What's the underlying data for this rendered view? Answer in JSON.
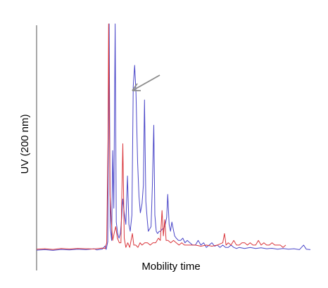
{
  "chart_data": {
    "type": "line",
    "title": "",
    "xlabel": "Mobility time",
    "ylabel": "UV (200 nm)",
    "xlim": [
      0,
      100
    ],
    "ylim": [
      0,
      100
    ],
    "grid": false,
    "legend": "none",
    "annotation": "arrow pointing to broad blue peak",
    "series": [
      {
        "color": "#4a46c8",
        "points": [
          [
            0,
            1.8
          ],
          [
            3,
            2.0
          ],
          [
            6,
            1.7
          ],
          [
            9,
            2.1
          ],
          [
            12,
            1.9
          ],
          [
            15,
            2.2
          ],
          [
            18,
            2.0
          ],
          [
            21,
            2.4
          ],
          [
            22,
            1.9
          ],
          [
            24,
            2.3
          ],
          [
            25,
            3.6
          ],
          [
            25.4,
            2.1
          ],
          [
            26,
            5.5
          ],
          [
            26.5,
            100
          ],
          [
            26.9,
            12
          ],
          [
            27.4,
            6
          ],
          [
            27.8,
            45
          ],
          [
            28.2,
            20
          ],
          [
            28.7,
            100
          ],
          [
            29.1,
            14
          ],
          [
            29.6,
            9
          ],
          [
            30.1,
            7
          ],
          [
            30.6,
            9
          ],
          [
            31.0,
            15
          ],
          [
            31.5,
            24
          ],
          [
            32.0,
            18
          ],
          [
            32.6,
            13
          ],
          [
            33.2,
            34
          ],
          [
            33.7,
            13
          ],
          [
            34.2,
            10
          ],
          [
            34.8,
            17
          ],
          [
            35.3,
            73
          ],
          [
            35.8,
            82
          ],
          [
            36.3,
            70
          ],
          [
            36.9,
            40
          ],
          [
            37.4,
            25
          ],
          [
            37.9,
            18
          ],
          [
            38.5,
            22
          ],
          [
            39.0,
            30
          ],
          [
            39.4,
            67
          ],
          [
            39.9,
            23
          ],
          [
            40.4,
            15
          ],
          [
            40.8,
            10
          ],
          [
            41.3,
            11
          ],
          [
            41.8,
            12
          ],
          [
            42.3,
            30
          ],
          [
            42.8,
            56
          ],
          [
            43.2,
            17
          ],
          [
            43.7,
            10
          ],
          [
            44.2,
            9
          ],
          [
            44.8,
            10
          ],
          [
            45.3,
            10
          ],
          [
            45.9,
            11
          ],
          [
            46.4,
            11
          ],
          [
            47.0,
            13
          ],
          [
            47.5,
            16
          ],
          [
            47.9,
            26
          ],
          [
            48.4,
            13
          ],
          [
            48.9,
            10
          ],
          [
            49.4,
            14
          ],
          [
            49.9,
            11
          ],
          [
            50.4,
            8
          ],
          [
            51.0,
            7
          ],
          [
            51.8,
            6
          ],
          [
            52.6,
            6
          ],
          [
            53.4,
            7
          ],
          [
            54.2,
            5
          ],
          [
            55.0,
            6
          ],
          [
            56.0,
            5
          ],
          [
            57.0,
            4
          ],
          [
            58.0,
            4
          ],
          [
            59.0,
            6
          ],
          [
            60.0,
            4
          ],
          [
            61.0,
            5
          ],
          [
            62.0,
            3
          ],
          [
            63.0,
            4
          ],
          [
            64.0,
            5
          ],
          [
            65.0,
            3.5
          ],
          [
            66.0,
            4
          ],
          [
            67.0,
            3
          ],
          [
            68.0,
            4
          ],
          [
            69.0,
            3
          ],
          [
            70.0,
            3
          ],
          [
            71.0,
            4
          ],
          [
            72.0,
            3
          ],
          [
            73.0,
            2.5
          ],
          [
            74.0,
            3
          ],
          [
            76.0,
            2.5
          ],
          [
            78.0,
            3
          ],
          [
            80.0,
            2.5
          ],
          [
            82.0,
            2.8
          ],
          [
            84.0,
            2.4
          ],
          [
            86.0,
            2.6
          ],
          [
            88.0,
            2.2
          ],
          [
            90.0,
            2.5
          ],
          [
            92.0,
            2.2
          ],
          [
            94.0,
            2.4
          ],
          [
            96.0,
            2.0
          ],
          [
            97.5,
            4
          ],
          [
            98.5,
            2.2
          ],
          [
            100.0,
            2.0
          ]
        ]
      },
      {
        "color": "#d9353b",
        "points": [
          [
            0,
            2.2
          ],
          [
            3,
            2.4
          ],
          [
            6,
            2.1
          ],
          [
            9,
            2.5
          ],
          [
            12,
            2.3
          ],
          [
            15,
            2.5
          ],
          [
            18,
            2.4
          ],
          [
            21,
            2.3
          ],
          [
            24,
            2.7
          ],
          [
            25,
            2.5
          ],
          [
            25.6,
            5
          ],
          [
            26.1,
            50
          ],
          [
            26.3,
            100
          ],
          [
            26.8,
            26
          ],
          [
            27.3,
            14
          ],
          [
            27.8,
            6
          ],
          [
            28.3,
            9
          ],
          [
            28.9,
            12
          ],
          [
            29.5,
            7
          ],
          [
            30.2,
            5
          ],
          [
            30.8,
            5
          ],
          [
            31.5,
            48
          ],
          [
            32.0,
            7
          ],
          [
            32.6,
            3
          ],
          [
            33.3,
            5
          ],
          [
            34.0,
            3
          ],
          [
            35.0,
            9
          ],
          [
            35.5,
            4
          ],
          [
            36.2,
            4
          ],
          [
            37.0,
            3
          ],
          [
            37.8,
            5
          ],
          [
            38.5,
            4
          ],
          [
            39.5,
            5
          ],
          [
            40.5,
            5
          ],
          [
            41.5,
            4
          ],
          [
            42.5,
            5
          ],
          [
            43.5,
            5
          ],
          [
            44.5,
            7
          ],
          [
            45.2,
            6
          ],
          [
            45.8,
            19
          ],
          [
            46.3,
            8
          ],
          [
            46.8,
            15
          ],
          [
            47.3,
            6
          ],
          [
            48.0,
            6
          ],
          [
            49.0,
            5
          ],
          [
            50.0,
            6
          ],
          [
            51.0,
            5
          ],
          [
            52.0,
            4
          ],
          [
            53.0,
            5
          ],
          [
            54.0,
            4
          ],
          [
            55.0,
            4
          ],
          [
            56.0,
            4
          ],
          [
            58.0,
            4
          ],
          [
            60.0,
            3.5
          ],
          [
            62.0,
            4
          ],
          [
            64.0,
            3.5
          ],
          [
            66.0,
            4
          ],
          [
            68.0,
            5
          ],
          [
            68.6,
            9
          ],
          [
            69.2,
            4
          ],
          [
            70.0,
            5
          ],
          [
            71.0,
            4
          ],
          [
            72.0,
            6
          ],
          [
            73.0,
            4
          ],
          [
            74.0,
            4
          ],
          [
            75.0,
            5
          ],
          [
            76.0,
            5
          ],
          [
            77.0,
            4
          ],
          [
            78.0,
            5
          ],
          [
            79.0,
            4
          ],
          [
            80.0,
            4
          ],
          [
            81.0,
            6
          ],
          [
            82.0,
            4
          ],
          [
            83.0,
            5
          ],
          [
            84.0,
            4
          ],
          [
            85.0,
            4
          ],
          [
            86.0,
            5
          ],
          [
            87.0,
            4
          ],
          [
            88.0,
            4
          ],
          [
            89.0,
            4
          ],
          [
            90.0,
            3
          ],
          [
            91.0,
            4
          ]
        ]
      }
    ]
  }
}
